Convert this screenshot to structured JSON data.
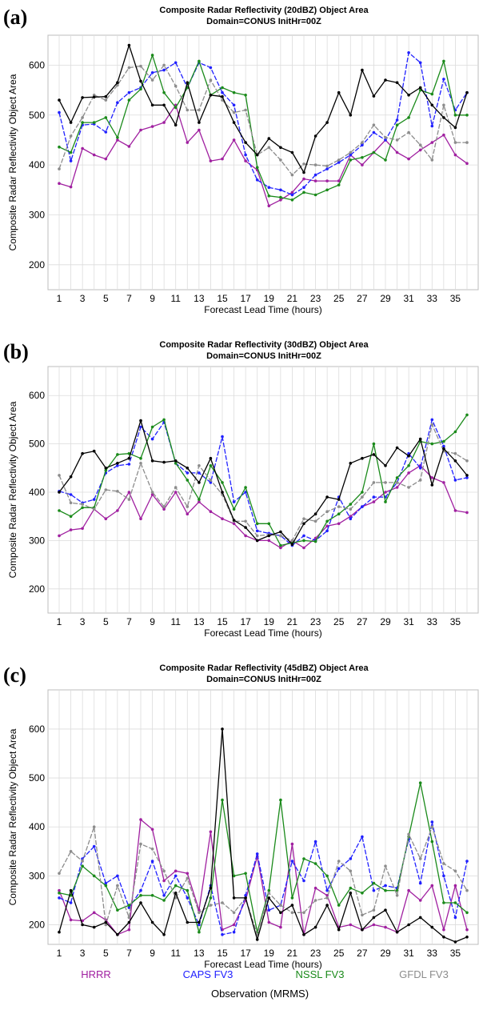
{
  "colors": {
    "HRRR": "#a020a0",
    "CAPS FV3": "#2020ff",
    "NSSL FV3": "#1a8a1a",
    "GFDL FV3": "#8c8c8c",
    "Observation (MRMS)": "#000000"
  },
  "legend": [
    "HRRR",
    "CAPS FV3",
    "NSSL FV3",
    "GFDL FV3",
    "Observation (MRMS)"
  ],
  "chart_data": [
    {
      "type": "line",
      "panel_label": "(a)",
      "title": "Composite Radar Reflectivity (20dBZ) Object Area",
      "subtitle": "Domain=CONUS  InitHr=00Z",
      "xlabel": "Forecast Lead Time (hours)",
      "ylabel": "Composite Radar Reflectivity Object Area",
      "xlim": [
        1,
        36
      ],
      "ylim": [
        150,
        660
      ],
      "yticks": [
        200,
        300,
        400,
        500,
        600
      ],
      "xticks": [
        1,
        3,
        5,
        7,
        9,
        11,
        13,
        15,
        17,
        19,
        21,
        23,
        25,
        27,
        29,
        31,
        33,
        35
      ],
      "grid": true,
      "x": [
        1,
        2,
        3,
        4,
        5,
        6,
        7,
        8,
        9,
        10,
        11,
        12,
        13,
        14,
        15,
        16,
        17,
        18,
        19,
        20,
        21,
        22,
        23,
        24,
        25,
        26,
        27,
        28,
        29,
        30,
        31,
        32,
        33,
        34,
        35,
        36
      ],
      "series": [
        {
          "name": "HRRR",
          "values": [
            363,
            356,
            433,
            420,
            412,
            450,
            437,
            470,
            477,
            485,
            520,
            445,
            470,
            408,
            412,
            450,
            408,
            390,
            318,
            330,
            345,
            372,
            368,
            368,
            368,
            420,
            400,
            425,
            450,
            425,
            412,
            430,
            445,
            460,
            420,
            403
          ]
        },
        {
          "name": "CAPS FV3",
          "values": [
            505,
            408,
            480,
            482,
            466,
            525,
            545,
            555,
            585,
            590,
            605,
            555,
            605,
            595,
            545,
            520,
            420,
            370,
            355,
            350,
            340,
            355,
            380,
            392,
            405,
            420,
            440,
            465,
            450,
            490,
            625,
            605,
            478,
            572,
            510,
            545
          ]
        },
        {
          "name": "NSSL FV3",
          "values": [
            436,
            425,
            485,
            485,
            495,
            455,
            530,
            552,
            620,
            545,
            515,
            555,
            608,
            540,
            555,
            545,
            540,
            395,
            338,
            335,
            330,
            345,
            340,
            350,
            360,
            410,
            415,
            425,
            410,
            480,
            495,
            550,
            542,
            608,
            500,
            500
          ]
        },
        {
          "name": "GFDL FV3",
          "values": [
            392,
            458,
            495,
            540,
            530,
            560,
            595,
            598,
            570,
            600,
            558,
            510,
            510,
            570,
            530,
            505,
            510,
            420,
            435,
            410,
            380,
            402,
            400,
            398,
            410,
            425,
            445,
            480,
            455,
            450,
            465,
            440,
            410,
            520,
            445,
            445
          ]
        },
        {
          "name": "Observation (MRMS)",
          "values": [
            530,
            485,
            535,
            536,
            537,
            565,
            640,
            568,
            520,
            520,
            480,
            565,
            485,
            540,
            537,
            485,
            445,
            420,
            453,
            435,
            425,
            385,
            458,
            485,
            545,
            500,
            590,
            538,
            570,
            565,
            540,
            555,
            520,
            495,
            475,
            545
          ]
        }
      ]
    },
    {
      "type": "line",
      "panel_label": "(b)",
      "title": "Composite Radar Reflectivity (30dBZ) Object Area",
      "subtitle": "Domain=CONUS  InitHr=00Z",
      "xlabel": "Forecast Lead Time (hours)",
      "ylabel": "Composite Radar Reflectivity Object Area",
      "xlim": [
        1,
        36
      ],
      "ylim": [
        150,
        660
      ],
      "yticks": [
        200,
        300,
        400,
        500,
        600
      ],
      "xticks": [
        1,
        3,
        5,
        7,
        9,
        11,
        13,
        15,
        17,
        19,
        21,
        23,
        25,
        27,
        29,
        31,
        33,
        35
      ],
      "grid": true,
      "x": [
        1,
        2,
        3,
        4,
        5,
        6,
        7,
        8,
        9,
        10,
        11,
        12,
        13,
        14,
        15,
        16,
        17,
        18,
        19,
        20,
        21,
        22,
        23,
        24,
        25,
        26,
        27,
        28,
        29,
        30,
        31,
        32,
        33,
        34,
        35,
        36
      ],
      "series": [
        {
          "name": "HRRR",
          "values": [
            310,
            322,
            325,
            365,
            345,
            362,
            400,
            345,
            395,
            365,
            400,
            355,
            380,
            360,
            345,
            335,
            310,
            300,
            300,
            285,
            300,
            285,
            305,
            330,
            335,
            350,
            370,
            380,
            400,
            410,
            440,
            455,
            430,
            420,
            362,
            358
          ]
        },
        {
          "name": "CAPS FV3",
          "values": [
            402,
            395,
            378,
            385,
            440,
            455,
            458,
            535,
            510,
            545,
            460,
            440,
            440,
            420,
            515,
            380,
            400,
            320,
            315,
            310,
            290,
            310,
            300,
            320,
            390,
            345,
            370,
            390,
            390,
            420,
            480,
            450,
            550,
            495,
            425,
            430
          ]
        },
        {
          "name": "NSSL FV3",
          "values": [
            362,
            350,
            368,
            368,
            445,
            478,
            480,
            470,
            535,
            550,
            460,
            425,
            385,
            455,
            420,
            365,
            410,
            335,
            335,
            290,
            295,
            300,
            298,
            340,
            355,
            375,
            400,
            500,
            380,
            430,
            455,
            505,
            500,
            505,
            525,
            560
          ]
        },
        {
          "name": "GFDL FV3",
          "values": [
            435,
            378,
            375,
            365,
            405,
            402,
            385,
            460,
            400,
            370,
            410,
            370,
            455,
            425,
            395,
            340,
            340,
            310,
            312,
            310,
            300,
            345,
            340,
            360,
            370,
            365,
            390,
            420,
            420,
            420,
            410,
            425,
            540,
            485,
            480,
            465
          ]
        },
        {
          "name": "Observation (MRMS)",
          "values": [
            400,
            432,
            480,
            485,
            450,
            460,
            470,
            548,
            465,
            462,
            465,
            450,
            420,
            470,
            400,
            342,
            327,
            300,
            310,
            318,
            292,
            335,
            355,
            390,
            385,
            460,
            470,
            478,
            455,
            492,
            475,
            510,
            415,
            490,
            465,
            435
          ]
        }
      ]
    },
    {
      "type": "line",
      "panel_label": "(c)",
      "title": "Composite Radar Reflectivity (45dBZ) Object Area",
      "subtitle": "Domain=CONUS  InitHr=00Z",
      "xlabel": "Forecast Lead Time (hours)",
      "ylabel": "Composite Radar Reflectivity Object Area",
      "xlim": [
        1,
        36
      ],
      "ylim": [
        160,
        680
      ],
      "yticks": [
        200,
        300,
        400,
        500,
        600
      ],
      "xticks": [
        1,
        3,
        5,
        7,
        9,
        11,
        13,
        15,
        17,
        19,
        21,
        23,
        25,
        27,
        29,
        31,
        33,
        35
      ],
      "grid": true,
      "x": [
        1,
        2,
        3,
        4,
        5,
        6,
        7,
        8,
        9,
        10,
        11,
        12,
        13,
        14,
        15,
        16,
        17,
        18,
        19,
        20,
        21,
        22,
        23,
        24,
        25,
        26,
        27,
        28,
        29,
        30,
        31,
        32,
        33,
        34,
        35,
        36
      ],
      "series": [
        {
          "name": "HRRR",
          "values": [
            270,
            210,
            208,
            225,
            210,
            180,
            190,
            415,
            395,
            290,
            310,
            305,
            230,
            390,
            190,
            200,
            250,
            340,
            205,
            195,
            365,
            180,
            275,
            260,
            195,
            200,
            190,
            200,
            195,
            185,
            270,
            250,
            280,
            190,
            280,
            190
          ]
        },
        {
          "name": "CAPS FV3",
          "values": [
            255,
            245,
            335,
            360,
            285,
            300,
            235,
            270,
            330,
            260,
            300,
            255,
            200,
            280,
            180,
            185,
            260,
            345,
            230,
            240,
            330,
            290,
            370,
            270,
            315,
            335,
            380,
            270,
            280,
            275,
            375,
            285,
            410,
            300,
            215,
            330
          ]
        },
        {
          "name": "NSSL FV3",
          "values": [
            265,
            260,
            320,
            300,
            280,
            230,
            240,
            260,
            260,
            250,
            280,
            270,
            185,
            255,
            455,
            300,
            305,
            185,
            270,
            455,
            255,
            335,
            325,
            300,
            240,
            275,
            265,
            285,
            270,
            270,
            380,
            490,
            370,
            245,
            245,
            225
          ]
        },
        {
          "name": "GFDL FV3",
          "values": [
            305,
            350,
            330,
            400,
            200,
            280,
            215,
            365,
            355,
            310,
            255,
            295,
            225,
            240,
            245,
            225,
            255,
            180,
            265,
            240,
            225,
            225,
            250,
            255,
            330,
            310,
            220,
            230,
            320,
            260,
            385,
            335,
            400,
            325,
            310,
            270
          ]
        },
        {
          "name": "Observation (MRMS)",
          "values": [
            185,
            270,
            200,
            195,
            205,
            180,
            205,
            245,
            205,
            180,
            265,
            205,
            205,
            275,
            600,
            255,
            255,
            170,
            255,
            225,
            240,
            180,
            195,
            240,
            190,
            265,
            190,
            215,
            230,
            185,
            200,
            215,
            195,
            175,
            165,
            175
          ]
        }
      ]
    }
  ]
}
